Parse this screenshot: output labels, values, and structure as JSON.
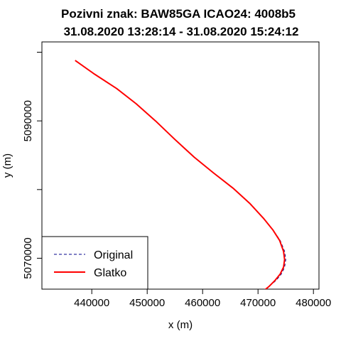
{
  "chart_data": {
    "type": "line",
    "title_line1": "Pozivni znak: BAW85GA  ICAO24: 4008b5",
    "title_line2": "31.08.2020 13:28:14 - 31.08.2020 15:24:12",
    "xlabel": "x (m)",
    "ylabel": "y (m)",
    "xlim": [
      431000,
      481000
    ],
    "ylim": [
      5065500,
      5101500
    ],
    "x_ticks": [
      440000,
      450000,
      460000,
      470000,
      480000
    ],
    "x_tick_labels": [
      "440000",
      "450000",
      "460000",
      "470000",
      "480000"
    ],
    "y_ticks": [
      5070000,
      5080000,
      5090000,
      5100000
    ],
    "y_tick_labels": [
      "5070000",
      "",
      "5090000",
      ""
    ],
    "grid": false,
    "legend_position": "bottom-left",
    "series": [
      {
        "name": "Original",
        "color": "#00008B",
        "dash": "dashed",
        "x": [
          437000,
          440500,
          444500,
          448000,
          451500,
          455000,
          458500,
          462000,
          465500,
          468500,
          471000,
          472700,
          474000,
          474800,
          475000,
          474800,
          474200,
          473300,
          472000,
          470000,
          468000,
          466700
        ],
        "y": [
          5098800,
          5096800,
          5094700,
          5092500,
          5090000,
          5087300,
          5084700,
          5082400,
          5080200,
          5078000,
          5075800,
          5074100,
          5072600,
          5071000,
          5069800,
          5068700,
          5067700,
          5066800,
          5065900,
          5064600,
          5063000,
          5061700
        ]
      },
      {
        "name": "Glatko",
        "color": "#FF0000",
        "dash": "solid",
        "x": [
          437000,
          440500,
          444500,
          448000,
          451500,
          455000,
          458500,
          462000,
          465500,
          468500,
          471000,
          472700,
          473900,
          474600,
          474800,
          474600,
          474000,
          473100,
          472000,
          470000,
          468000,
          466700
        ],
        "y": [
          5098800,
          5096800,
          5094700,
          5092500,
          5090000,
          5087300,
          5084700,
          5082400,
          5080200,
          5078000,
          5075800,
          5074100,
          5072600,
          5071000,
          5069800,
          5068700,
          5067700,
          5066800,
          5065900,
          5064600,
          5063000,
          5061700
        ]
      }
    ]
  }
}
